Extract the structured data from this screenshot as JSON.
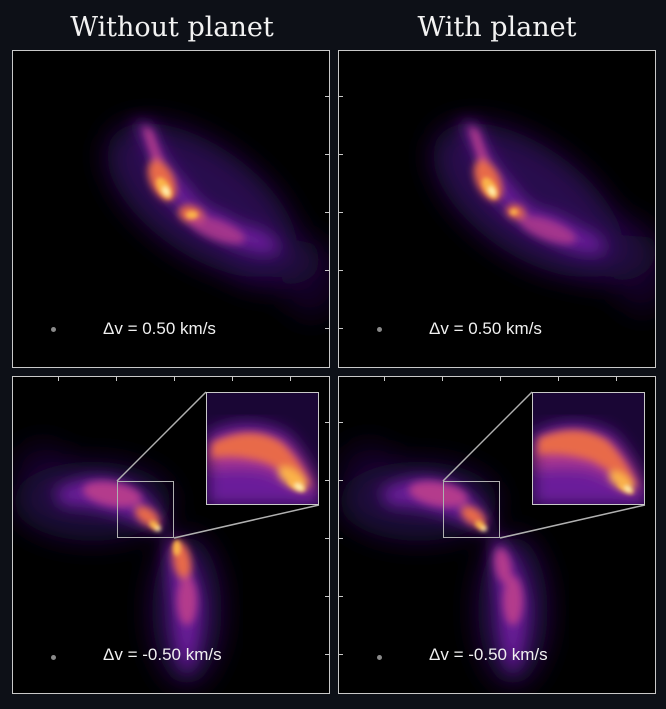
{
  "titles": {
    "left": "Without planet",
    "right": "With planet"
  },
  "panels": {
    "top_left": {
      "dv": "Δv = 0.50 km/s"
    },
    "top_right": {
      "dv": "Δv = 0.50 km/s"
    },
    "bottom_left": {
      "dv": "Δv = -0.50 km/s"
    },
    "bottom_right": {
      "dv": "Δv = -0.50 km/s"
    }
  },
  "colormap": [
    "#000000",
    "#2b0a55",
    "#6a1e9a",
    "#b43b8c",
    "#e86a4a",
    "#fbb44a",
    "#fff2b0"
  ]
}
